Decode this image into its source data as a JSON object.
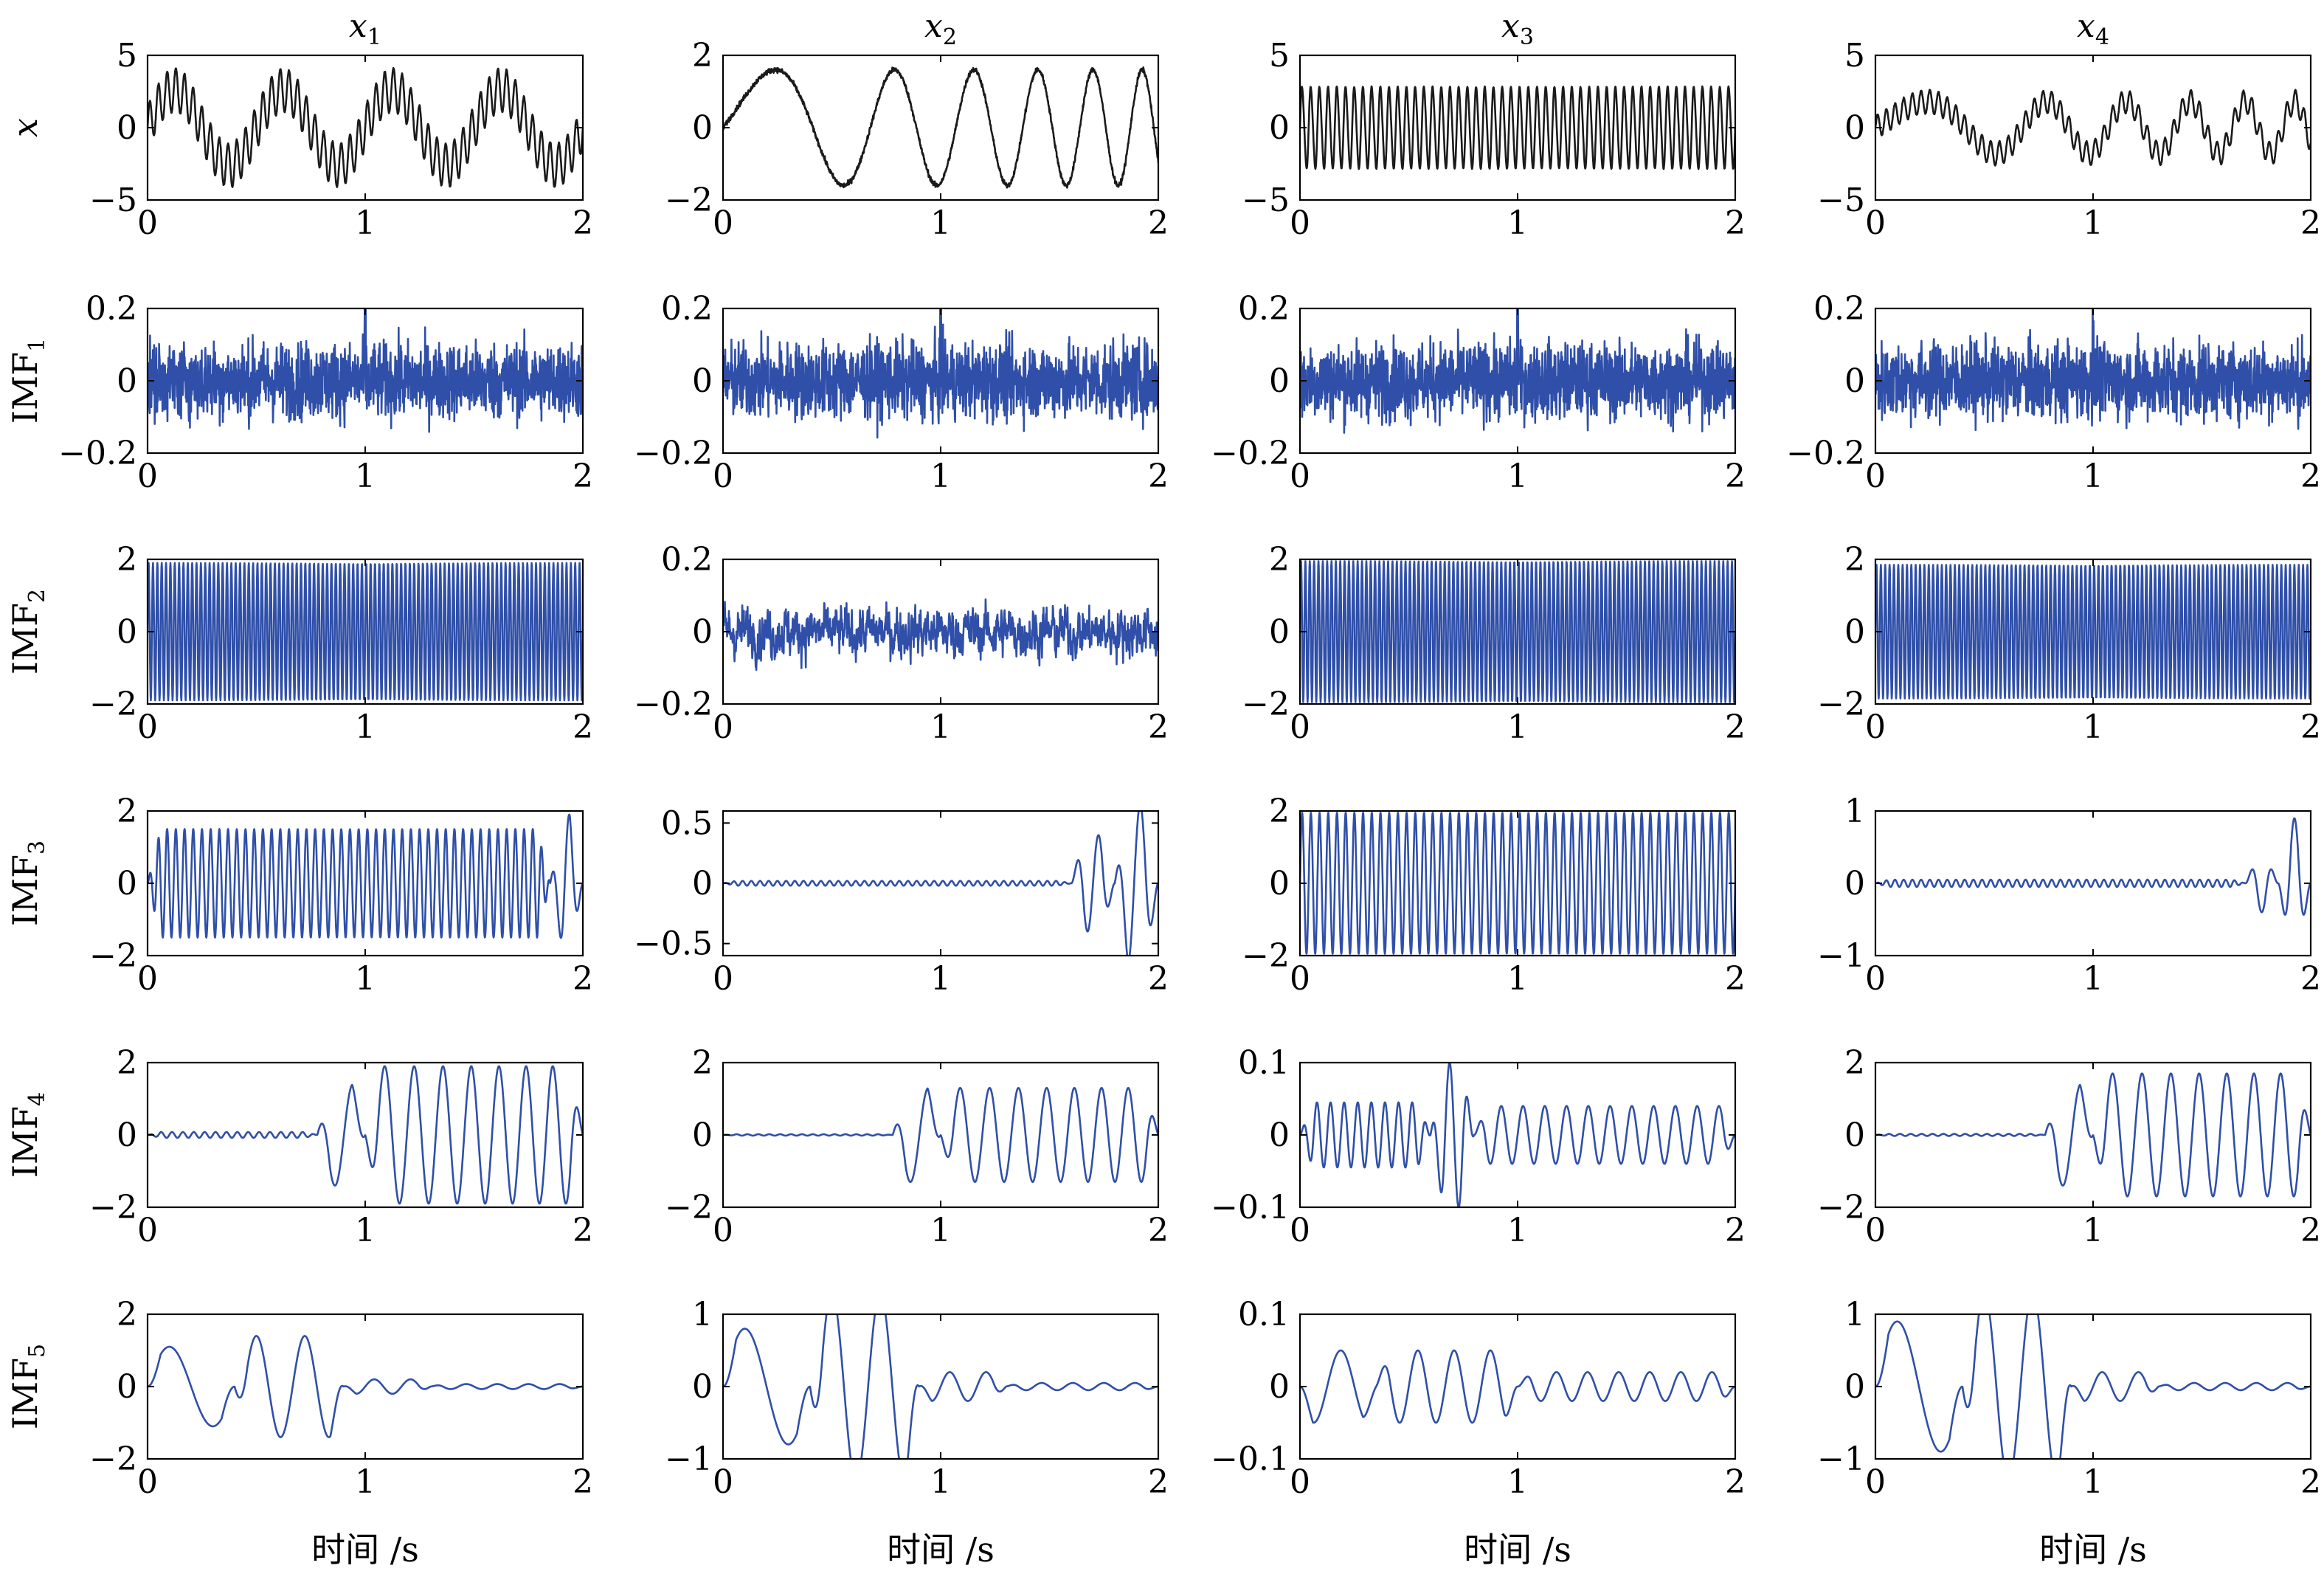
{
  "colors": {
    "signal": "#1a1a1a",
    "imf": "#2f4fa8",
    "axis": "#000000"
  },
  "columns": [
    {
      "title_base": "x",
      "title_sub": "1"
    },
    {
      "title_base": "x",
      "title_sub": "2"
    },
    {
      "title_base": "x",
      "title_sub": "3"
    },
    {
      "title_base": "x",
      "title_sub": "4"
    }
  ],
  "rows": [
    {
      "label_base": "x",
      "label_sub": "",
      "italic": true
    },
    {
      "label_base": "IMF",
      "label_sub": "1",
      "italic": false
    },
    {
      "label_base": "IMF",
      "label_sub": "2",
      "italic": false
    },
    {
      "label_base": "IMF",
      "label_sub": "3",
      "italic": false
    },
    {
      "label_base": "IMF",
      "label_sub": "4",
      "italic": false
    },
    {
      "label_base": "IMF",
      "label_sub": "5",
      "italic": false
    }
  ],
  "xlabel": "时间 /s",
  "chart_data": {
    "type": "line",
    "x_range": [
      0,
      2
    ],
    "xticks": [
      0,
      1,
      2
    ],
    "xtick_labels": [
      "0",
      "1",
      "2"
    ],
    "ylims": [
      [
        [
          -5,
          5
        ],
        [
          -2,
          2
        ],
        [
          -5,
          5
        ],
        [
          -5,
          5
        ]
      ],
      [
        [
          -0.2,
          0.2
        ],
        [
          -0.2,
          0.2
        ],
        [
          -0.2,
          0.2
        ],
        [
          -0.2,
          0.2
        ]
      ],
      [
        [
          -2,
          2
        ],
        [
          -0.2,
          0.2
        ],
        [
          -2,
          2
        ],
        [
          -2,
          2
        ]
      ],
      [
        [
          -2,
          2
        ],
        [
          -0.6,
          0.6
        ],
        [
          -2,
          2
        ],
        [
          -1,
          1
        ]
      ],
      [
        [
          -2,
          2
        ],
        [
          -2,
          2
        ],
        [
          -0.1,
          0.1
        ],
        [
          -2,
          2
        ]
      ],
      [
        [
          -2,
          2
        ],
        [
          -1,
          1
        ],
        [
          -0.1,
          0.1
        ],
        [
          -1,
          1
        ]
      ]
    ],
    "yticks": [
      [
        [
          -5,
          0,
          5
        ],
        [
          -2,
          0,
          2
        ],
        [
          -5,
          0,
          5
        ],
        [
          -5,
          0,
          5
        ]
      ],
      [
        [
          -0.2,
          0,
          0.2
        ],
        [
          -0.2,
          0,
          0.2
        ],
        [
          -0.2,
          0,
          0.2
        ],
        [
          -0.2,
          0,
          0.2
        ]
      ],
      [
        [
          -2,
          0,
          2
        ],
        [
          -0.2,
          0,
          0.2
        ],
        [
          -2,
          0,
          2
        ],
        [
          -2,
          0,
          2
        ]
      ],
      [
        [
          -2,
          0,
          2
        ],
        [
          -0.5,
          0,
          0.5
        ],
        [
          -2,
          0,
          2
        ],
        [
          -1,
          0,
          1
        ]
      ],
      [
        [
          -2,
          0,
          2
        ],
        [
          -2,
          0,
          2
        ],
        [
          -0.1,
          0,
          0.1
        ],
        [
          -2,
          0,
          2
        ]
      ],
      [
        [
          -2,
          0,
          2
        ],
        [
          -1,
          0,
          1
        ],
        [
          -0.1,
          0,
          0.1
        ],
        [
          -1,
          0,
          1
        ]
      ]
    ],
    "ytick_labels": [
      [
        [
          "−5",
          "0",
          "5"
        ],
        [
          "−2",
          "0",
          "2"
        ],
        [
          "−5",
          "0",
          "5"
        ],
        [
          "−5",
          "0",
          "5"
        ]
      ],
      [
        [
          "−0.2",
          "0",
          "0.2"
        ],
        [
          "−0.2",
          "0",
          "0.2"
        ],
        [
          "−0.2",
          "0",
          "0.2"
        ],
        [
          "−0.2",
          "0",
          "0.2"
        ]
      ],
      [
        [
          "−2",
          "0",
          "2"
        ],
        [
          "−0.2",
          "0",
          "0.2"
        ],
        [
          "−2",
          "0",
          "2"
        ],
        [
          "−2",
          "0",
          "2"
        ]
      ],
      [
        [
          "−2",
          "0",
          "2"
        ],
        [
          "−0.5",
          "0",
          "0.5"
        ],
        [
          "−2",
          "0",
          "2"
        ],
        [
          "−1",
          "0",
          "1"
        ]
      ],
      [
        [
          "−2",
          "0",
          "2"
        ],
        [
          "−2",
          "0",
          "2"
        ],
        [
          "−0.1",
          "0",
          "0.1"
        ],
        [
          "−2",
          "0",
          "2"
        ]
      ],
      [
        [
          "−2",
          "0",
          "2"
        ],
        [
          "−1",
          "0",
          "1"
        ],
        [
          "−0.1",
          "0",
          "0.1"
        ],
        [
          "−1",
          "0",
          "1"
        ]
      ]
    ],
    "series": [
      [
        {
          "components": [
            [
              1.5,
              25,
              0,
              0,
              0,
              2
            ],
            [
              2.6,
              2,
              0,
              0,
              0,
              2
            ]
          ],
          "noise": 0.05
        },
        {
          "components": [
            [
              1.6,
              0.8,
              2.0,
              0,
              0,
              2
            ]
          ],
          "noise": 0.05
        },
        {
          "components": [
            [
              2.8,
              25,
              0,
              0,
              0,
              2
            ],
            [
              0.2,
              50,
              0,
              0,
              0,
              2
            ]
          ],
          "noise": 0.03
        },
        {
          "components": [
            [
              0.8,
              25,
              0,
              0,
              0,
              2
            ],
            [
              1.8,
              0.8,
              2.0,
              0,
              0,
              2
            ]
          ],
          "noise": 0.04
        }
      ],
      [
        {
          "components": [],
          "noise": 0.075,
          "spike": 0.2
        },
        {
          "components": [],
          "noise": 0.075,
          "spike": 0.2
        },
        {
          "components": [],
          "noise": 0.075,
          "spike": 0.2
        },
        {
          "components": [],
          "noise": 0.075,
          "spike": 0.2
        }
      ],
      [
        {
          "components": [
            [
              1.9,
              50,
              0,
              0,
              0,
              2
            ]
          ],
          "noise": 0
        },
        {
          "components": [],
          "noise": 0.045,
          "lowpass": true
        },
        {
          "components": [
            [
              1.95,
              50,
              0,
              0,
              0,
              2
            ]
          ],
          "noise": 0
        },
        {
          "components": [
            [
              1.85,
              50,
              0,
              0,
              0,
              2
            ]
          ],
          "noise": 0
        }
      ],
      [
        {
          "components": [
            [
              1.5,
              25,
              0,
              0,
              0,
              1.85
            ],
            [
              1.9,
              12,
              0,
              0,
              1.85,
              2
            ]
          ],
          "noise": 0
        },
        {
          "components": [
            [
              0.02,
              25,
              0,
              0,
              0,
              1.6
            ],
            [
              0.4,
              10,
              0,
              0,
              1.6,
              1.8
            ],
            [
              0.65,
              9,
              0,
              0,
              1.8,
              2
            ]
          ],
          "noise": 0
        },
        {
          "components": [
            [
              1.95,
              25,
              0,
              0,
              0,
              2
            ]
          ],
          "noise": 0
        },
        {
          "components": [
            [
              0.05,
              25,
              0,
              0,
              0,
              1.7
            ],
            [
              0.4,
              10,
              0,
              0,
              1.7,
              1.85
            ],
            [
              0.9,
              10,
              0,
              0,
              1.85,
              2
            ]
          ],
          "noise": 0
        }
      ],
      [
        {
          "components": [
            [
              0.08,
              20,
              0,
              0,
              0,
              0.78
            ],
            [
              1.4,
              5,
              1.2,
              0,
              0.78,
              1.0
            ],
            [
              1.9,
              6,
              1.2,
              0,
              1.0,
              2.0
            ]
          ],
          "noise": 0
        },
        {
          "components": [
            [
              0.02,
              20,
              0,
              0,
              0,
              0.78
            ],
            [
              1.3,
              5,
              1.2,
              0,
              0.78,
              1.0
            ],
            [
              1.3,
              6,
              1.2,
              0,
              1.0,
              2.0
            ]
          ],
          "noise": 0
        },
        {
          "components": [
            [
              0.045,
              16,
              0,
              0,
              0,
              0.6
            ],
            [
              0.1,
              12,
              0,
              0,
              0.6,
              0.8
            ],
            [
              0.04,
              10,
              0,
              0,
              0.8,
              2.0
            ]
          ],
          "noise": 0
        },
        {
          "components": [
            [
              0.03,
              20,
              0,
              0,
              0,
              0.78
            ],
            [
              1.4,
              5,
              1.2,
              0,
              0.78,
              1.0
            ],
            [
              1.7,
              6,
              1.2,
              0,
              1.0,
              2.0
            ]
          ],
          "noise": 0
        }
      ],
      [
        {
          "components": [
            [
              1.1,
              2.5,
              0,
              0,
              0,
              0.4
            ],
            [
              1.4,
              4.5,
              0,
              0,
              0.4,
              0.9
            ],
            [
              0.2,
              6,
              0,
              0,
              0.9,
              1.3
            ],
            [
              0.07,
              7,
              0,
              0,
              1.3,
              2.0
            ]
          ],
          "noise": 0
        },
        {
          "components": [
            [
              0.8,
              2.5,
              0,
              0,
              0,
              0.4
            ],
            [
              1.3,
              4.5,
              0,
              0,
              0.4,
              0.9
            ],
            [
              0.2,
              6,
              0,
              0,
              0.9,
              1.3
            ],
            [
              0.05,
              7,
              0,
              0,
              1.3,
              2.0
            ]
          ],
          "noise": 0
        },
        {
          "components": [
            [
              -0.05,
              4,
              0,
              0,
              0,
              0.35
            ],
            [
              0.05,
              6,
              0,
              0,
              0.35,
              1.0
            ],
            [
              0.02,
              7,
              0,
              0,
              1.0,
              2.0
            ]
          ],
          "noise": 0
        },
        {
          "components": [
            [
              0.9,
              2.5,
              0,
              0,
              0,
              0.4
            ],
            [
              1.3,
              4.5,
              0,
              0,
              0.4,
              0.9
            ],
            [
              0.2,
              6,
              0,
              0,
              0.9,
              1.3
            ],
            [
              0.05,
              7,
              0,
              0,
              1.3,
              2.0
            ]
          ],
          "noise": 0
        }
      ]
    ]
  }
}
